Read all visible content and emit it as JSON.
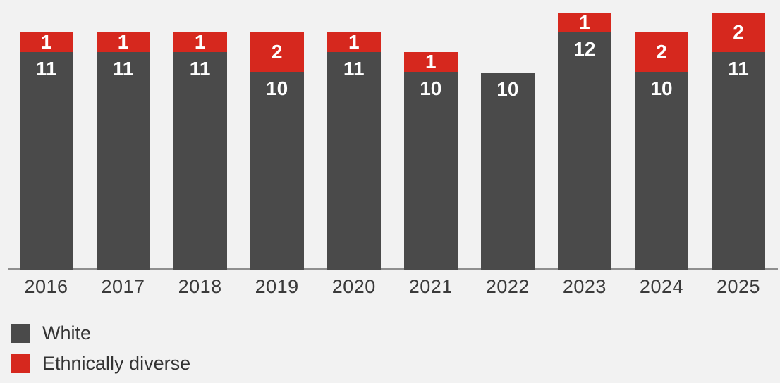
{
  "background_color": "#f2f2f2",
  "chart_data": {
    "type": "bar",
    "stacked": true,
    "title": "",
    "xlabel": "",
    "ylabel": "",
    "categories": [
      "2016",
      "2017",
      "2018",
      "2019",
      "2020",
      "2021",
      "2022",
      "2023",
      "2024",
      "2025"
    ],
    "series": [
      {
        "name": "White",
        "color": "#4a4a4a",
        "values": [
          11,
          11,
          11,
          10,
          11,
          10,
          10,
          12,
          10,
          11
        ]
      },
      {
        "name": "Ethnically diverse",
        "color": "#d6281e",
        "values": [
          1,
          1,
          1,
          2,
          1,
          1,
          0,
          1,
          2,
          2
        ]
      }
    ],
    "totals": [
      12,
      12,
      12,
      12,
      12,
      11,
      10,
      13,
      12,
      13
    ],
    "value_labels_shown": true,
    "value_label_color": "#ffffff",
    "ylim": [
      0,
      13.7
    ],
    "grid": false,
    "axis_line_color": "#8f8f8f",
    "tick_label_color": "#3a3a3a",
    "legend_position": "bottom-left"
  }
}
